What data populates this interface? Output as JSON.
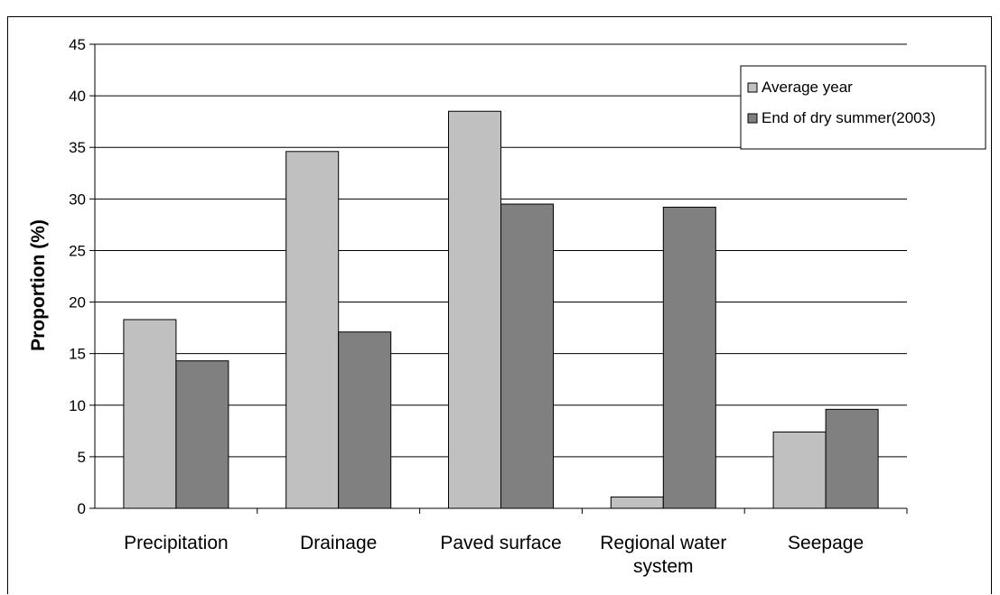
{
  "chart_data": {
    "type": "bar",
    "title": "",
    "xlabel": "",
    "ylabel": "Proportion (%)",
    "ylim": [
      0,
      45
    ],
    "yticks": [
      0,
      5,
      10,
      15,
      20,
      25,
      30,
      35,
      40,
      45
    ],
    "grid": true,
    "legend_position": "top-right",
    "categories": [
      [
        "Precipitation"
      ],
      [
        "Drainage"
      ],
      [
        "Paved surface"
      ],
      [
        "Regional water",
        "system"
      ],
      [
        "Seepage"
      ]
    ],
    "series": [
      {
        "name": "Average year",
        "color": "#c0c0c0",
        "values": [
          18.3,
          34.6,
          38.5,
          1.1,
          7.4
        ]
      },
      {
        "name": "End of dry summer(2003)",
        "color": "#808080",
        "values": [
          14.3,
          17.1,
          29.5,
          29.2,
          9.6
        ]
      }
    ]
  }
}
